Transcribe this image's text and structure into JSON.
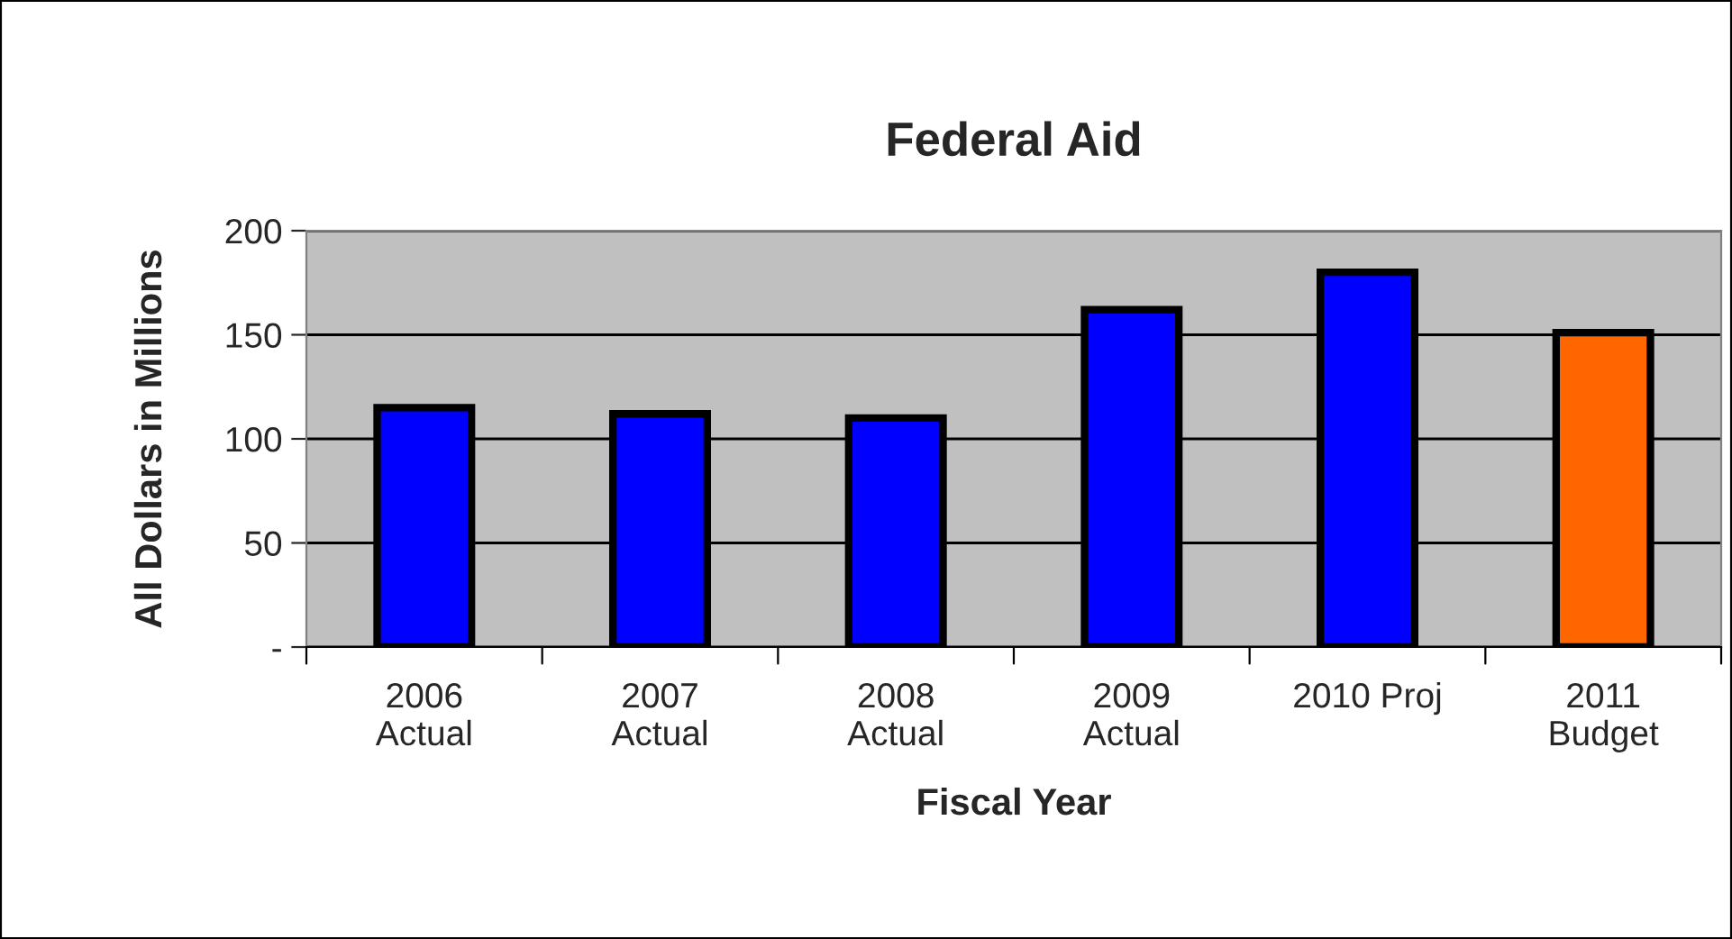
{
  "chart_data": {
    "type": "bar",
    "title": "Federal Aid",
    "xlabel": "Fiscal Year",
    "ylabel": "All Dollars in Millions",
    "categories": [
      "2006\nActual",
      "2007\nActual",
      "2008\nActual",
      "2009\nActual",
      "2010 Proj",
      "2011\nBudget"
    ],
    "values": [
      115,
      112,
      110,
      162,
      180,
      151
    ],
    "colors": [
      "#0000ff",
      "#0000ff",
      "#0000ff",
      "#0000ff",
      "#0000ff",
      "#ff6600"
    ],
    "ylim": [
      0,
      200
    ],
    "yticks": [
      {
        "value": 0,
        "label": "-"
      },
      50,
      100,
      150,
      200
    ],
    "grid": "y",
    "legend": false
  }
}
